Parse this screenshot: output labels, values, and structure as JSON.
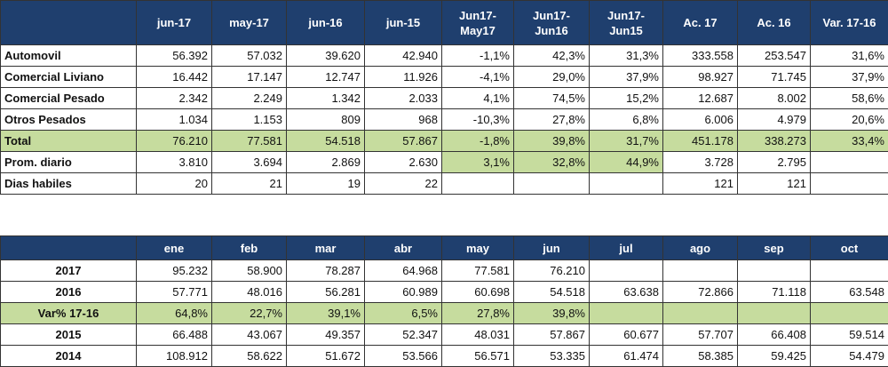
{
  "table1": {
    "header": [
      null,
      "jun-17",
      "may-17",
      "jun-16",
      "jun-15",
      "Jun17-May17",
      "Jun17-Jun16",
      "Jun17-Jun15",
      "Ac. 17",
      "Ac. 16",
      "Var. 17-16"
    ],
    "rows": [
      [
        "Automovil",
        "56.392",
        "57.032",
        "39.620",
        "42.940",
        "-1,1%",
        "42,3%",
        "31,3%",
        "333.558",
        "253.547",
        "31,6%"
      ],
      [
        "Comercial Liviano",
        "16.442",
        "17.147",
        "12.747",
        "11.926",
        "-4,1%",
        "29,0%",
        "37,9%",
        "98.927",
        "71.745",
        "37,9%"
      ],
      [
        "Comercial Pesado",
        "2.342",
        "2.249",
        "1.342",
        "2.033",
        "4,1%",
        "74,5%",
        "15,2%",
        "12.687",
        "8.002",
        "58,6%"
      ],
      [
        "Otros Pesados",
        "1.034",
        "1.153",
        "809",
        "968",
        "-10,3%",
        "27,8%",
        "6,8%",
        "6.006",
        "4.979",
        "20,6%"
      ],
      [
        "Total",
        "76.210",
        "77.581",
        "54.518",
        "57.867",
        "-1,8%",
        "39,8%",
        "31,7%",
        "451.178",
        "338.273",
        "33,4%"
      ],
      [
        "Prom. diario",
        "3.810",
        "3.694",
        "2.869",
        "2.630",
        "3,1%",
        "32,8%",
        "44,9%",
        "3.728",
        "2.795",
        null
      ],
      [
        "Dias habiles",
        "20",
        "21",
        "19",
        "22",
        null,
        null,
        null,
        "121",
        "121",
        null
      ]
    ]
  },
  "table2": {
    "header": [
      null,
      "ene",
      "feb",
      "mar",
      "abr",
      "may",
      "jun",
      "jul",
      "ago",
      "sep",
      "oct"
    ],
    "rows": [
      [
        "2017",
        "95.232",
        "58.900",
        "78.287",
        "64.968",
        "77.581",
        "76.210",
        null,
        null,
        null,
        null
      ],
      [
        "2016",
        "57.771",
        "48.016",
        "56.281",
        "60.989",
        "60.698",
        "54.518",
        "63.638",
        "72.866",
        "71.118",
        "63.548"
      ],
      [
        "Var% 17-16",
        "64,8%",
        "22,7%",
        "39,1%",
        "6,5%",
        "27,8%",
        "39,8%",
        null,
        null,
        null,
        null
      ],
      [
        "2015",
        "66.488",
        "43.067",
        "49.357",
        "52.347",
        "48.031",
        "57.867",
        "60.677",
        "57.707",
        "66.408",
        "59.514"
      ],
      [
        "2014",
        "108.912",
        "58.622",
        "51.672",
        "53.566",
        "56.571",
        "53.335",
        "61.474",
        "58.385",
        "59.425",
        "54.479"
      ]
    ]
  }
}
